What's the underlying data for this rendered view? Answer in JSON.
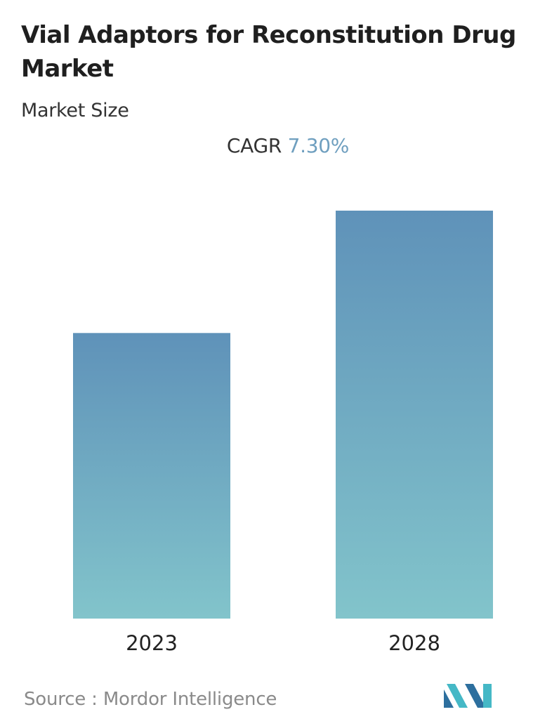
{
  "header": {
    "title": "Vial Adaptors for Reconstitution Drug Market",
    "subtitle": "Market Size"
  },
  "cagr": {
    "label": "CAGR",
    "value": "7.30%"
  },
  "footer": {
    "source_label": "Source :",
    "source_name": "Mordor Intelligence"
  },
  "colors": {
    "bar_top": "#5f92b9",
    "bar_bottom": "#82c4cb",
    "cagr_value": "#6f9fbf",
    "logo_dark": "#2d6f9e",
    "logo_light": "#45b8c6"
  },
  "logo": {
    "icon": "mordor-intelligence-logo-icon"
  },
  "chart_data": {
    "type": "bar",
    "categories": [
      "2023",
      "2028"
    ],
    "values": [
      0.7,
      1.0
    ],
    "title": "",
    "xlabel": "",
    "ylabel": "",
    "ylim": [
      0,
      1.0
    ]
  }
}
